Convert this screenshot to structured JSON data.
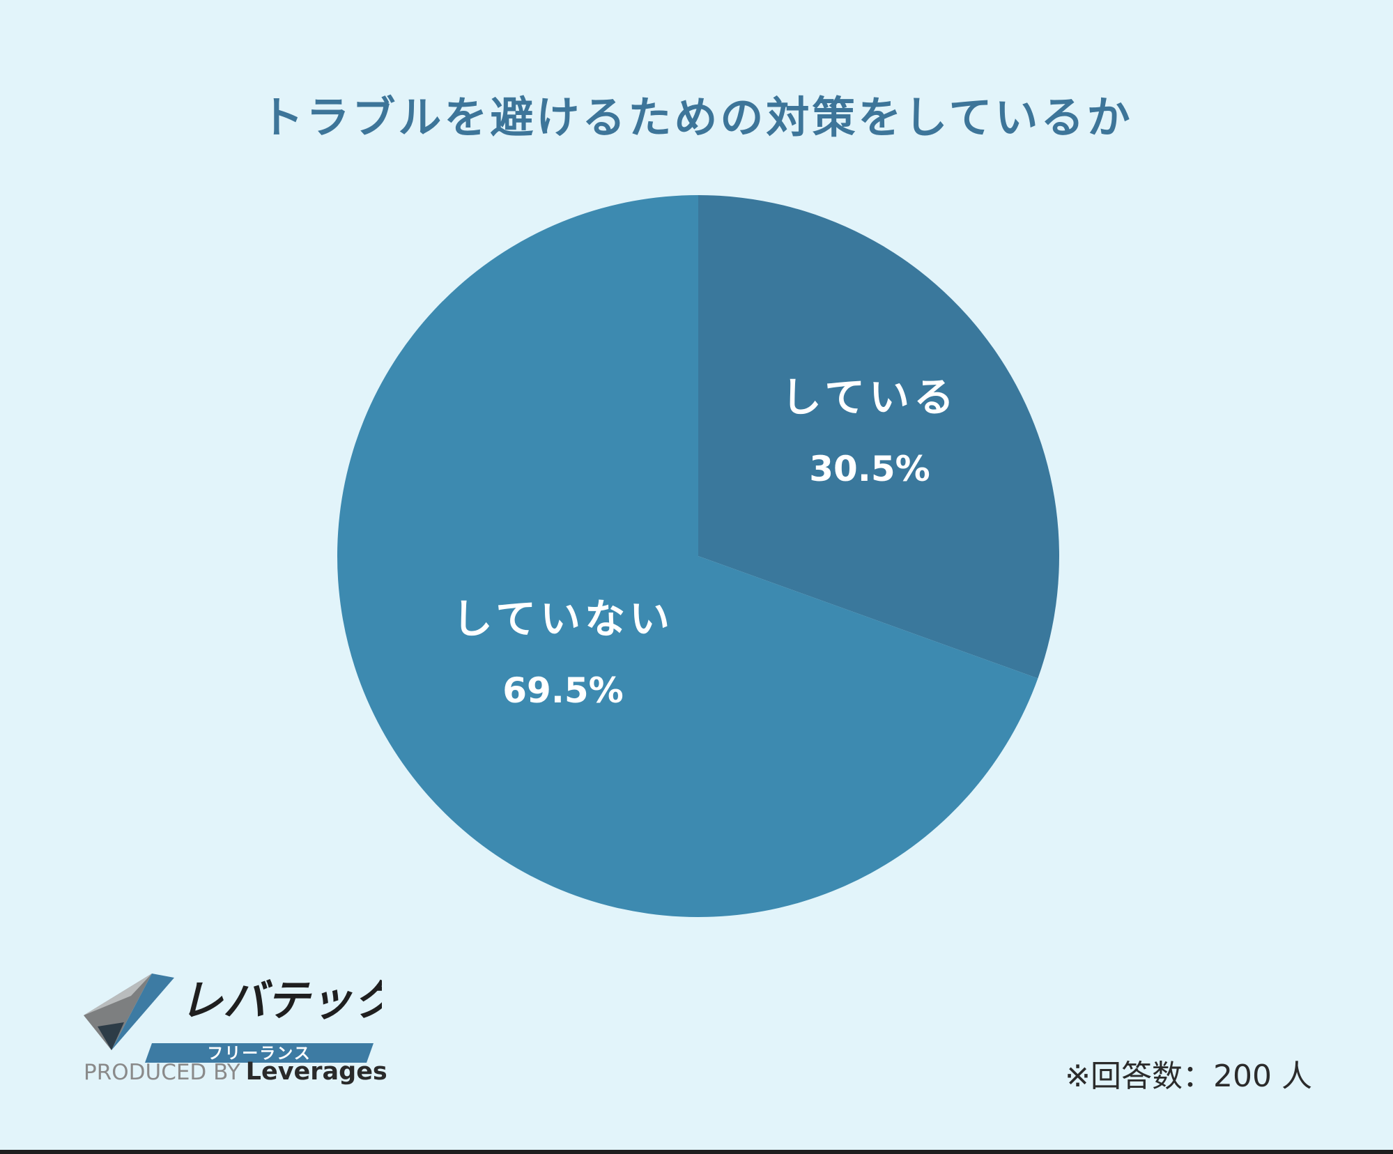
{
  "chart_data": {
    "type": "pie",
    "title": "トラブルを避けるための対策をしているか",
    "slices": [
      {
        "label": "している",
        "value": 30.5,
        "display": "30.5%",
        "color": "#3a789c"
      },
      {
        "label": "していない",
        "value": 69.5,
        "display": "69.5%",
        "color": "#3d8ab0"
      }
    ],
    "start_angle": "12 o'clock",
    "direction": "clockwise"
  },
  "note": "※回答数：200 人",
  "logo": {
    "brand": "レバテック",
    "sub": "フリーランス",
    "produced_by": "PRODUCED BY",
    "company": "Leverages"
  }
}
